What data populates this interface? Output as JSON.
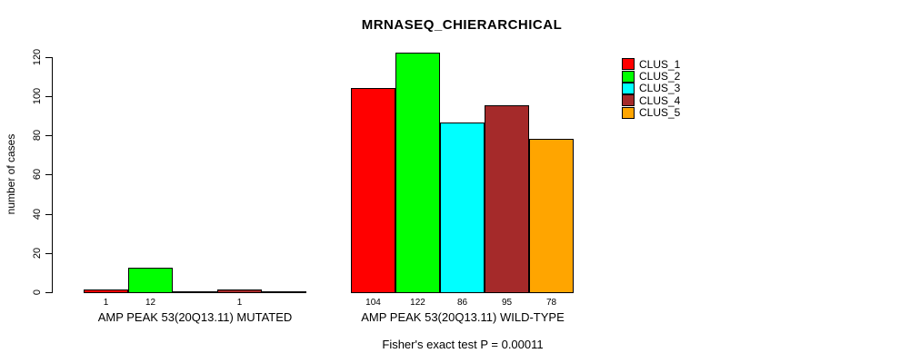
{
  "title": "MRNASEQ_CHIERARCHICAL",
  "footer": {
    "caption": "Fisher's exact test P = 0.00011"
  },
  "legend": {
    "items": [
      {
        "label": "CLUS_1",
        "color": "#FF0000"
      },
      {
        "label": "CLUS_2",
        "color": "#00FF00"
      },
      {
        "label": "CLUS_3",
        "color": "#00FFFF"
      },
      {
        "label": "CLUS_4",
        "color": "#A52A2A"
      },
      {
        "label": "CLUS_5",
        "color": "#FFA500"
      }
    ]
  },
  "chart_data": {
    "type": "bar",
    "title": "MRNASEQ_CHIERARCHICAL",
    "xlabel": "",
    "ylabel": "number of cases",
    "ylim": [
      0,
      120
    ],
    "yticks": [
      0,
      20,
      40,
      60,
      80,
      100,
      120
    ],
    "grid": false,
    "legend_position": "top-right",
    "categories": [
      "AMP PEAK 53(20Q13.11) MUTATED",
      "AMP PEAK 53(20Q13.11) WILD-TYPE"
    ],
    "series": [
      {
        "name": "CLUS_1",
        "color": "#FF0000",
        "values": [
          1,
          104
        ]
      },
      {
        "name": "CLUS_2",
        "color": "#00FF00",
        "values": [
          12,
          122
        ]
      },
      {
        "name": "CLUS_3",
        "color": "#00FFFF",
        "values": [
          0,
          86
        ]
      },
      {
        "name": "CLUS_4",
        "color": "#A52A2A",
        "values": [
          1,
          95
        ]
      },
      {
        "name": "CLUS_5",
        "color": "#FFA500",
        "values": [
          0,
          78
        ]
      }
    ],
    "bar_value_labels": [
      [
        "1",
        "12",
        "",
        "1",
        ""
      ],
      [
        "104",
        "122",
        "86",
        "95",
        "78"
      ]
    ],
    "annotation": "Fisher's exact test P = 0.00011"
  }
}
